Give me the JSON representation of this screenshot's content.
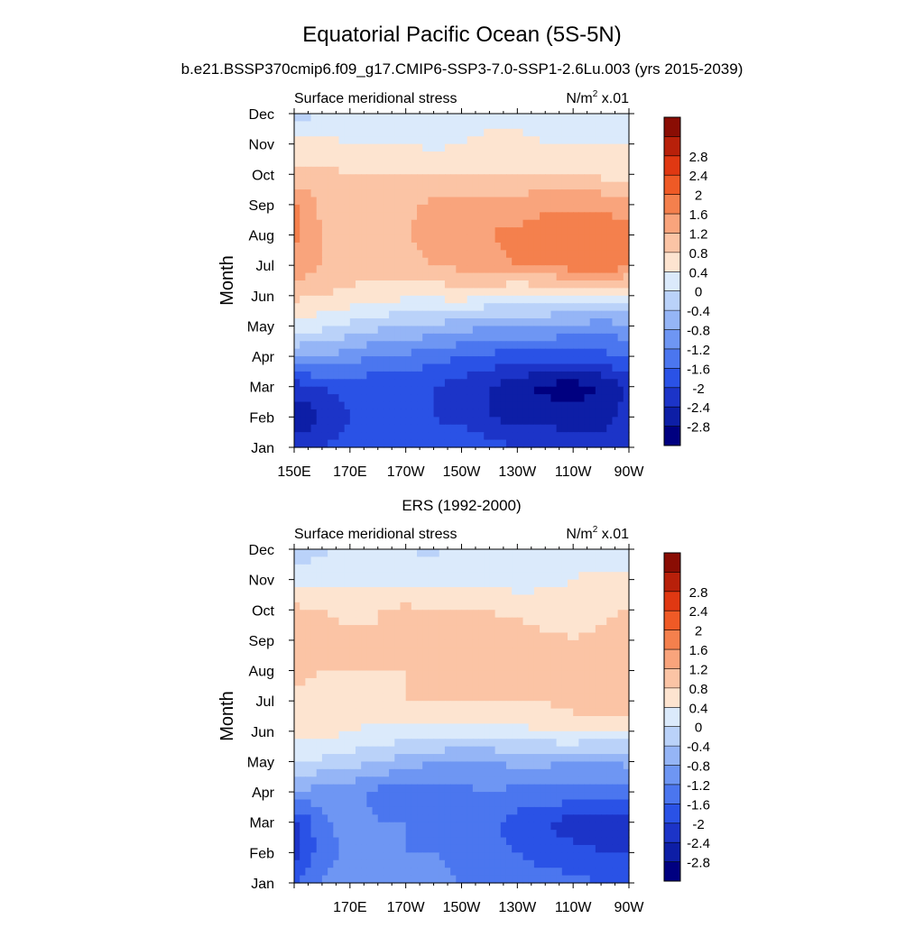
{
  "figure": {
    "title": "Equatorial Pacific Ocean (5S-5N)",
    "subtitle": "b.e21.BSSP370cmip6.f09_g17.CMIP6-SSP3-7.0-SSP1-2.6Lu.003 (yrs 2015-2039)"
  },
  "colorbar": {
    "colors": [
      "#000080",
      "#0d1ea6",
      "#1c34c8",
      "#2a52e6",
      "#4b76ef",
      "#6e96f3",
      "#95b5f6",
      "#bad2f9",
      "#dbeafb",
      "#fde4d0",
      "#fbc4a5",
      "#f9a47c",
      "#f4804d",
      "#ef5a26",
      "#e03812",
      "#b8200a",
      "#8a0d04"
    ],
    "labels": [
      "-2.8",
      "-2.4",
      "-2",
      "-1.6",
      "-1.2",
      "-0.8",
      "-0.4",
      "0",
      "0.4",
      "0.8",
      "1.2",
      "1.6",
      "2",
      "2.4",
      "2.8"
    ]
  },
  "chart_data": [
    {
      "type": "heatmap",
      "panel_title": "",
      "left_string": "Surface meridional stress",
      "right_string": "N/m",
      "right_string_sup": "2",
      "right_string_suffix": " x.01",
      "ylabel": "Month",
      "x_ticks": [
        "150E",
        "170E",
        "170W",
        "150W",
        "130W",
        "110W",
        "90W"
      ],
      "y_ticks": [
        "Jan",
        "Feb",
        "Mar",
        "Apr",
        "May",
        "Jun",
        "Jul",
        "Aug",
        "Sep",
        "Oct",
        "Nov",
        "Dec"
      ],
      "x_range": [
        "150E",
        "90W"
      ],
      "grid": false,
      "legend": "right",
      "x_lon": [
        150,
        160,
        170,
        180,
        190,
        200,
        210,
        220,
        230,
        240,
        250,
        260,
        270
      ],
      "values": [
        [
          -2.2,
          -2.0,
          -1.8,
          -1.6,
          -1.6,
          -1.6,
          -1.6,
          -1.8,
          -2.0,
          -2.0,
          -2.2,
          -2.2,
          -2.0
        ],
        [
          -2.8,
          -2.4,
          -2.0,
          -1.9,
          -1.9,
          -2.0,
          -2.2,
          -2.4,
          -2.6,
          -2.6,
          -2.6,
          -2.6,
          -2.2
        ],
        [
          -2.2,
          -2.0,
          -1.8,
          -2.0,
          -2.0,
          -2.0,
          -2.2,
          -2.4,
          -2.7,
          -2.9,
          -3.0,
          -2.8,
          -2.3
        ],
        [
          -0.8,
          -0.8,
          -1.0,
          -1.2,
          -1.3,
          -1.4,
          -1.6,
          -1.7,
          -1.8,
          -1.8,
          -1.8,
          -1.7,
          -1.6
        ],
        [
          0.3,
          0.1,
          -0.1,
          -0.3,
          -0.4,
          -0.5,
          -0.6,
          -0.8,
          -0.8,
          -0.8,
          -0.9,
          -1.0,
          -0.9
        ],
        [
          0.9,
          0.8,
          0.7,
          0.6,
          0.5,
          0.5,
          0.6,
          0.4,
          0.3,
          0.3,
          0.3,
          0.3,
          0.3
        ],
        [
          1.5,
          1.2,
          1.0,
          1.0,
          1.1,
          1.2,
          1.3,
          1.5,
          1.6,
          1.7,
          1.8,
          1.9,
          1.7
        ],
        [
          1.7,
          1.2,
          1.1,
          1.1,
          1.2,
          1.3,
          1.5,
          1.6,
          1.7,
          1.8,
          1.9,
          2.0,
          1.7
        ],
        [
          1.7,
          1.1,
          1.0,
          1.0,
          1.1,
          1.3,
          1.4,
          1.4,
          1.4,
          1.5,
          1.5,
          1.5,
          1.4
        ],
        [
          0.9,
          0.9,
          0.8,
          0.8,
          0.8,
          0.8,
          0.8,
          0.8,
          0.8,
          0.8,
          0.8,
          0.7,
          0.7
        ],
        [
          0.5,
          0.5,
          0.4,
          0.4,
          0.4,
          0.3,
          0.4,
          0.5,
          0.5,
          0.4,
          0.4,
          0.4,
          0.4
        ],
        [
          -0.3,
          0.1,
          0.2,
          0.2,
          0.2,
          0.2,
          0.2,
          0.3,
          0.3,
          0.2,
          0.2,
          0.2,
          0.2
        ]
      ]
    },
    {
      "type": "heatmap",
      "panel_title": "ERS (1992-2000)",
      "left_string": "Surface meridional stress",
      "right_string": "N/m",
      "right_string_sup": "2",
      "right_string_suffix": " x.01",
      "ylabel": "Month",
      "x_ticks": [
        "170E",
        "170W",
        "150W",
        "130W",
        "110W",
        "90W"
      ],
      "y_ticks": [
        "Jan",
        "Feb",
        "Mar",
        "Apr",
        "May",
        "Jun",
        "Jul",
        "Aug",
        "Sep",
        "Oct",
        "Nov",
        "Dec"
      ],
      "x_range": [
        "150E",
        "90W"
      ],
      "grid": false,
      "legend": "right",
      "x_lon": [
        150,
        160,
        170,
        180,
        190,
        200,
        210,
        220,
        230,
        240,
        250,
        260,
        270
      ],
      "values": [
        [
          -1.6,
          -1.2,
          -0.9,
          -0.8,
          -0.8,
          -1.0,
          -1.2,
          -1.3,
          -1.3,
          -1.4,
          -1.5,
          -1.6,
          -1.6
        ],
        [
          -2.2,
          -1.4,
          -1.1,
          -1.0,
          -1.2,
          -1.2,
          -1.4,
          -1.5,
          -1.6,
          -1.8,
          -1.9,
          -2.0,
          -2.0
        ],
        [
          -2.1,
          -1.3,
          -1.0,
          -1.2,
          -1.2,
          -1.3,
          -1.5,
          -1.5,
          -1.8,
          -2.0,
          -2.2,
          -2.2,
          -2.1
        ],
        [
          -0.8,
          -1.0,
          -1.1,
          -1.3,
          -1.5,
          -1.4,
          -1.3,
          -1.2,
          -1.3,
          -1.3,
          -1.3,
          -1.4,
          -1.4
        ],
        [
          0.1,
          -0.1,
          -0.2,
          -0.4,
          -0.6,
          -0.8,
          -0.8,
          -0.8,
          -0.7,
          -0.7,
          -0.8,
          -0.8,
          -0.7
        ],
        [
          0.5,
          0.6,
          0.4,
          0.3,
          0.3,
          0.3,
          0.2,
          0.2,
          0.3,
          0.4,
          0.5,
          0.4,
          0.3
        ],
        [
          0.7,
          0.7,
          0.7,
          0.7,
          0.8,
          0.8,
          0.8,
          0.8,
          0.8,
          0.8,
          1.0,
          1.2,
          1.2
        ],
        [
          0.9,
          0.8,
          0.8,
          0.8,
          0.8,
          0.8,
          0.8,
          0.9,
          0.9,
          0.9,
          1.0,
          1.1,
          1.2
        ],
        [
          1.1,
          0.9,
          0.9,
          0.8,
          0.9,
          0.9,
          0.9,
          1.0,
          1.0,
          0.9,
          0.8,
          0.9,
          1.1
        ],
        [
          0.9,
          0.8,
          0.7,
          0.8,
          0.9,
          0.8,
          0.8,
          0.8,
          0.7,
          0.6,
          0.6,
          0.7,
          0.8
        ],
        [
          0.3,
          0.3,
          0.3,
          0.2,
          0.3,
          0.3,
          0.3,
          0.3,
          0.2,
          0.3,
          0.4,
          0.5,
          0.5
        ],
        [
          -0.3,
          -0.1,
          0.1,
          0.1,
          0.0,
          -0.1,
          0.1,
          0.2,
          0.2,
          0.2,
          0.2,
          0.2,
          0.2
        ]
      ]
    }
  ]
}
